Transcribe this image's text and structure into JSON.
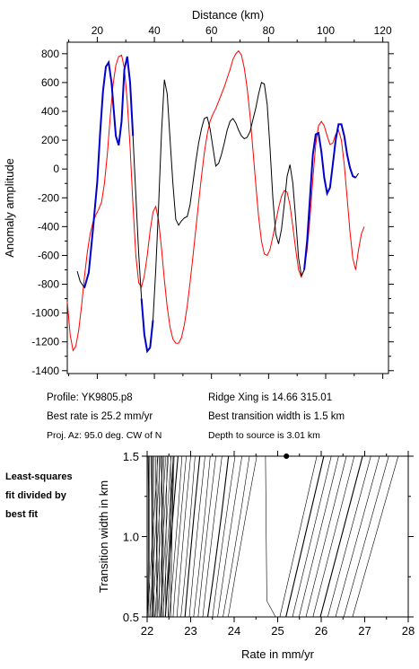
{
  "info": {
    "profile": "Profile: YK9805.p8",
    "best_rate": "Best rate is 25.2 mm/yr",
    "proj_az": "Proj. Az: 95.0 deg. CW of N",
    "ridge_xing": "Ridge Xing is 14.66 315.01",
    "best_width": "Best transition width is 1.5 km",
    "depth": "Depth to source is   3.01 km"
  },
  "side_note": [
    "Least-squares",
    "fit divided by",
    "best fit"
  ],
  "colors": {
    "observed": "#000000",
    "model": "#ff0000",
    "fit_window": "#0000cc",
    "contours": "#000000"
  },
  "chart_data": [
    {
      "type": "line",
      "xlabel": "Distance (km)",
      "ylabel": "Anomaly amplitude",
      "xlim": [
        9.5,
        122
      ],
      "ylim": [
        -1420,
        880
      ],
      "xticks": [
        20,
        40,
        60,
        80,
        100,
        120
      ],
      "yticks": [
        -1400,
        -1200,
        -1000,
        -800,
        -600,
        -400,
        -200,
        0,
        200,
        400,
        600,
        800
      ],
      "x_axis_position": "top",
      "series": [
        {
          "role": "observed",
          "color": "#000000",
          "x": [
            13,
            14,
            15.5,
            17,
            18.5,
            20,
            21,
            22,
            23,
            24,
            25,
            26.5,
            27.5,
            28.5,
            29.5,
            30.5,
            31.5,
            32.5,
            33.5,
            34.5,
            35.5,
            36.5,
            37.5,
            38.5,
            39.5,
            40.5,
            41.5,
            42.5,
            43.5,
            44.5,
            45.5,
            46.5,
            47.5,
            48.5,
            49.5,
            50.5,
            51.5,
            52.5,
            53.5,
            54.5,
            55.5,
            56.5,
            57.5,
            58.5,
            59.5,
            60.5,
            61.5,
            62.5,
            63.5,
            64.5,
            65.5,
            66.5,
            67.5,
            68.5,
            69.5,
            70.5,
            71.5,
            72.5,
            73.5,
            74.5,
            75.5,
            76.5,
            77.5,
            78.5,
            79.5,
            80.5,
            81.5,
            82.5,
            83.5,
            84.5,
            85.5,
            86.5,
            87.5,
            88.5,
            89.5,
            90.5,
            91.5,
            92.5,
            93.5,
            94.5,
            95.5,
            96.5,
            97.5,
            98.5,
            99.5,
            100.5,
            101.5,
            102.5,
            103.5,
            104.5,
            105.5,
            106.5,
            107.5,
            108.5,
            109.5,
            110.5,
            111.5
          ],
          "y": [
            -710,
            -780,
            -825,
            -720,
            -420,
            -90,
            250,
            540,
            710,
            740,
            600,
            230,
            165,
            330,
            690,
            780,
            600,
            230,
            -180,
            -590,
            -900,
            -1150,
            -1265,
            -1240,
            -1050,
            -700,
            -250,
            250,
            620,
            520,
            200,
            -100,
            -350,
            -390,
            -360,
            -340,
            -330,
            -250,
            -100,
            50,
            180,
            280,
            350,
            360,
            280,
            150,
            20,
            40,
            100,
            180,
            270,
            330,
            350,
            320,
            270,
            230,
            210,
            220,
            260,
            340,
            420,
            520,
            600,
            590,
            450,
            150,
            -200,
            -450,
            -520,
            -420,
            -250,
            -50,
            30,
            -100,
            -350,
            -620,
            -740,
            -700,
            -500,
            -200,
            100,
            240,
            250,
            120,
            -60,
            -170,
            -130,
            30,
            200,
            310,
            310,
            230,
            100,
            10,
            -50,
            -60,
            -30
          ],
          "blue_ranges": [
            [
              15.5,
              32.5
            ],
            [
              35.5,
              39.5
            ],
            [
              92.5,
              110.5
            ]
          ]
        },
        {
          "role": "model",
          "color": "#ff0000",
          "x": [
            9.5,
            10.5,
            11.5,
            12.5,
            13.5,
            14.5,
            15.5,
            16.5,
            17.5,
            18.5,
            19.5,
            20.5,
            21.5,
            22.5,
            23.5,
            24.5,
            25.5,
            26.5,
            27.5,
            28.5,
            29.5,
            30.5,
            31.5,
            32.5,
            33.5,
            34.5,
            35.5,
            36.5,
            37.5,
            38.5,
            39.5,
            40.5,
            41.5,
            42.5,
            43.5,
            44.5,
            45.5,
            46.5,
            47.5,
            48.5,
            49.5,
            50.5,
            51.5,
            52.5,
            53.5,
            54.5,
            55.5,
            56.5,
            57.5,
            58.5,
            59.5,
            60.5,
            61.5,
            62.5,
            63.5,
            64.5,
            65.5,
            66.5,
            67.5,
            68.5,
            69.5,
            70.5,
            71.5,
            72.5,
            73.5,
            74.5,
            75.5,
            76.5,
            77.5,
            78.5,
            79.5,
            80.5,
            81.5,
            82.5,
            83.5,
            84.5,
            85.5,
            86.5,
            87.5,
            88.5,
            89.5,
            90.5,
            91.5,
            92.5,
            93.5,
            94.5,
            95.5,
            96.5,
            97.5,
            98.5,
            99.5,
            100.5,
            101.5,
            102.5,
            103.5,
            104.5,
            105.5,
            106.5,
            107.5,
            108.5,
            109.5,
            110.5,
            111.5,
            112.5,
            113.5
          ],
          "y": [
            -920,
            -1150,
            -1260,
            -1230,
            -1120,
            -950,
            -750,
            -580,
            -450,
            -370,
            -320,
            -280,
            -230,
            -100,
            100,
            350,
            580,
            720,
            780,
            790,
            700,
            470,
            150,
            -250,
            -600,
            -790,
            -820,
            -740,
            -600,
            -430,
            -300,
            -260,
            -360,
            -550,
            -770,
            -960,
            -1100,
            -1180,
            -1210,
            -1210,
            -1170,
            -1080,
            -950,
            -790,
            -610,
            -420,
            -230,
            -50,
            110,
            240,
            330,
            380,
            420,
            470,
            520,
            570,
            630,
            690,
            760,
            800,
            820,
            790,
            700,
            560,
            370,
            140,
            -100,
            -330,
            -500,
            -590,
            -600,
            -560,
            -470,
            -370,
            -270,
            -190,
            -150,
            -160,
            -250,
            -400,
            -560,
            -700,
            -750,
            -700,
            -560,
            -340,
            -70,
            170,
            300,
            330,
            300,
            230,
            170,
            180,
            240,
            270,
            200,
            30,
            -200,
            -430,
            -620,
            -700,
            -560,
            -450,
            -400
          ],
          "trimmed_to": [
            9.5,
            113.5
          ]
        }
      ]
    },
    {
      "type": "contour",
      "xlabel": "Rate in mm/yr",
      "ylabel": "Transition width in km",
      "xlim": [
        22,
        28
      ],
      "ylim": [
        0.5,
        1.5
      ],
      "xticks": [
        22,
        23,
        24,
        25,
        26,
        27,
        28
      ],
      "yticks": [
        0.5,
        1.0,
        1.5
      ],
      "best_point": {
        "rate": 25.2,
        "width": 1.5
      },
      "left_family": [
        22.02,
        22.04,
        22.06,
        22.09,
        22.12,
        22.15,
        22.19,
        22.23,
        22.28,
        22.33,
        22.39,
        22.46,
        22.54,
        22.62,
        22.71,
        22.8,
        22.9,
        23.0,
        23.1,
        23.21,
        23.33,
        23.45,
        23.58,
        23.72,
        23.87,
        24.02,
        24.18,
        24.35,
        24.52
      ],
      "right_family_top": [
        25.9,
        26.06,
        26.23,
        26.4,
        26.58,
        26.76,
        26.95,
        27.14,
        27.34,
        27.55,
        27.77
      ],
      "notch": {
        "rate": 24.8,
        "width": 0.6
      }
    }
  ]
}
